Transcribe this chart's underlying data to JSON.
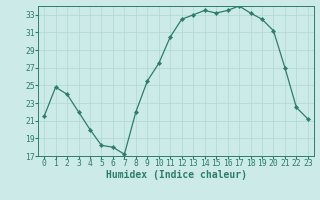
{
  "x": [
    0,
    1,
    2,
    3,
    4,
    5,
    6,
    7,
    8,
    9,
    10,
    11,
    12,
    13,
    14,
    15,
    16,
    17,
    18,
    19,
    20,
    21,
    22,
    23
  ],
  "y": [
    21.5,
    24.8,
    24.0,
    22.0,
    20.0,
    18.2,
    18.0,
    17.2,
    22.0,
    25.5,
    27.5,
    30.5,
    32.5,
    33.0,
    33.5,
    33.2,
    33.5,
    34.0,
    33.2,
    32.5,
    31.2,
    27.0,
    22.5,
    21.2
  ],
  "xlabel": "Humidex (Indice chaleur)",
  "ylim": [
    17,
    34
  ],
  "xlim": [
    -0.5,
    23.5
  ],
  "yticks": [
    17,
    19,
    21,
    23,
    25,
    27,
    29,
    31,
    33
  ],
  "xticks": [
    0,
    1,
    2,
    3,
    4,
    5,
    6,
    7,
    8,
    9,
    10,
    11,
    12,
    13,
    14,
    15,
    16,
    17,
    18,
    19,
    20,
    21,
    22,
    23
  ],
  "line_color": "#2d7d6e",
  "marker_color": "#2d7d6e",
  "bg_color": "#cceae7",
  "grid_color": "#add8d2",
  "tick_label_fontsize": 5.8,
  "xlabel_fontsize": 7.0,
  "marker_size": 2.2,
  "line_width": 0.9
}
